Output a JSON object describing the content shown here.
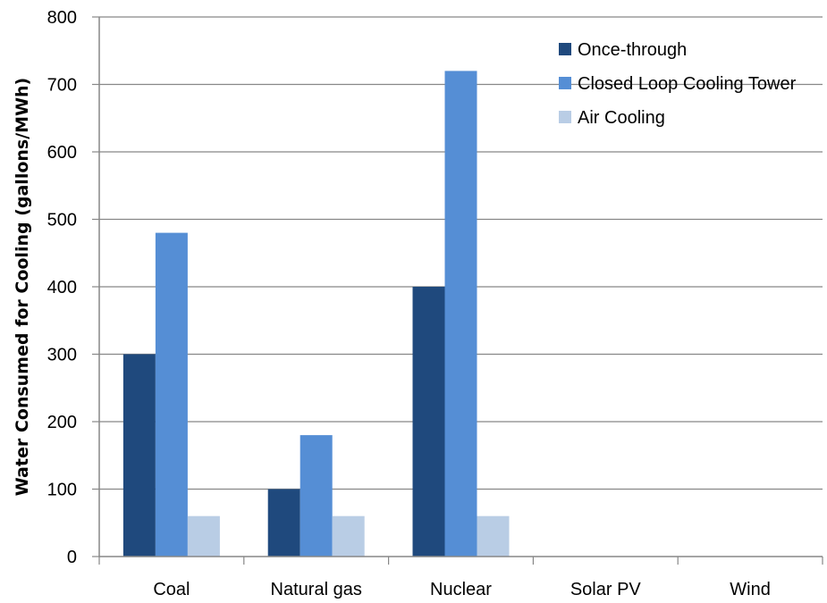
{
  "chart_data": {
    "type": "bar",
    "title": "",
    "xlabel": "",
    "ylabel": "Water Consumed for Cooling (gallons/MWh)",
    "ylim": [
      0,
      800
    ],
    "yticks": [
      0,
      100,
      200,
      300,
      400,
      500,
      600,
      700,
      800
    ],
    "grid": true,
    "legend_position": "top-right",
    "categories": [
      "Coal",
      "Natural gas",
      "Nuclear",
      "Solar PV",
      "Wind"
    ],
    "series": [
      {
        "name": "Once-through",
        "color": "#1f497d",
        "values": [
          300,
          100,
          400,
          0,
          0
        ]
      },
      {
        "name": "Closed Loop Cooling Tower",
        "color": "#558ed5",
        "values": [
          480,
          180,
          720,
          0,
          0
        ]
      },
      {
        "name": "Air Cooling",
        "color": "#b9cde5",
        "values": [
          60,
          60,
          60,
          0,
          0
        ]
      }
    ]
  }
}
